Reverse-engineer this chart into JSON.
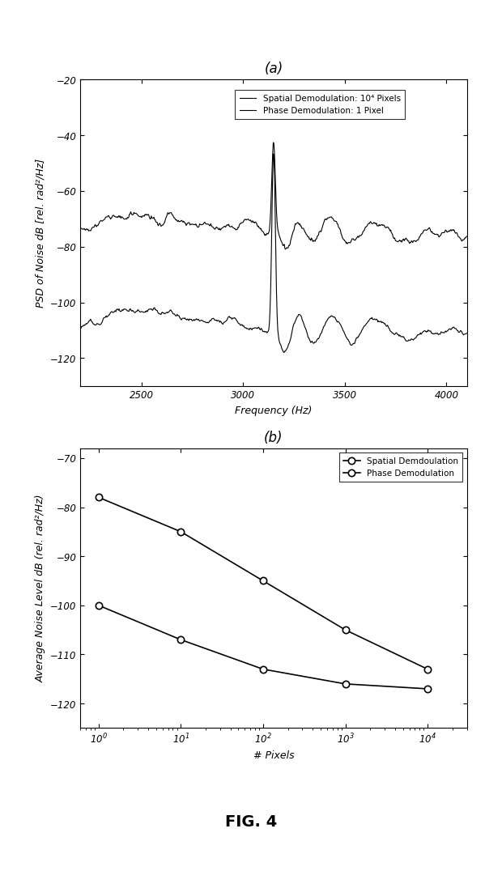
{
  "panel_a_label": "(a)",
  "panel_b_label": "(b)",
  "fig_label": "FIG. 4",
  "plot_a": {
    "xlim": [
      2200,
      4100
    ],
    "ylim": [
      -130,
      -20
    ],
    "xticks": [
      2500,
      3000,
      3500,
      4000
    ],
    "yticks": [
      -20,
      -40,
      -60,
      -80,
      -100,
      -120
    ],
    "xlabel": "Frequency (Hz)",
    "ylabel": "PSD of Noise dB [rel. rad²/Hz]",
    "legend": [
      "Spatial Demodulation: 10⁴ Pixels",
      "Phase Demodulation: 1 Pixel"
    ],
    "line_color": "#000000",
    "spatial_baseline": -110,
    "phase_baseline": -75,
    "peak_freq": 3150
  },
  "plot_b": {
    "ylim": [
      -125,
      -68
    ],
    "yticks": [
      -70,
      -80,
      -90,
      -100,
      -110,
      -120
    ],
    "xlabel": "# Pixels",
    "ylabel": "Average Noise Level dB (rel. rad²/Hz)",
    "legend": [
      "Spatial Demdoulation",
      "Phase Demodulation"
    ],
    "line_color": "#000000",
    "spatial_x": [
      1,
      10,
      100,
      1000,
      10000
    ],
    "spatial_y": [
      -100,
      -107,
      -113,
      -116,
      -117
    ],
    "phase_x": [
      1,
      10,
      100,
      1000,
      10000
    ],
    "phase_y": [
      -78,
      -85,
      -95,
      -105,
      -113
    ]
  }
}
